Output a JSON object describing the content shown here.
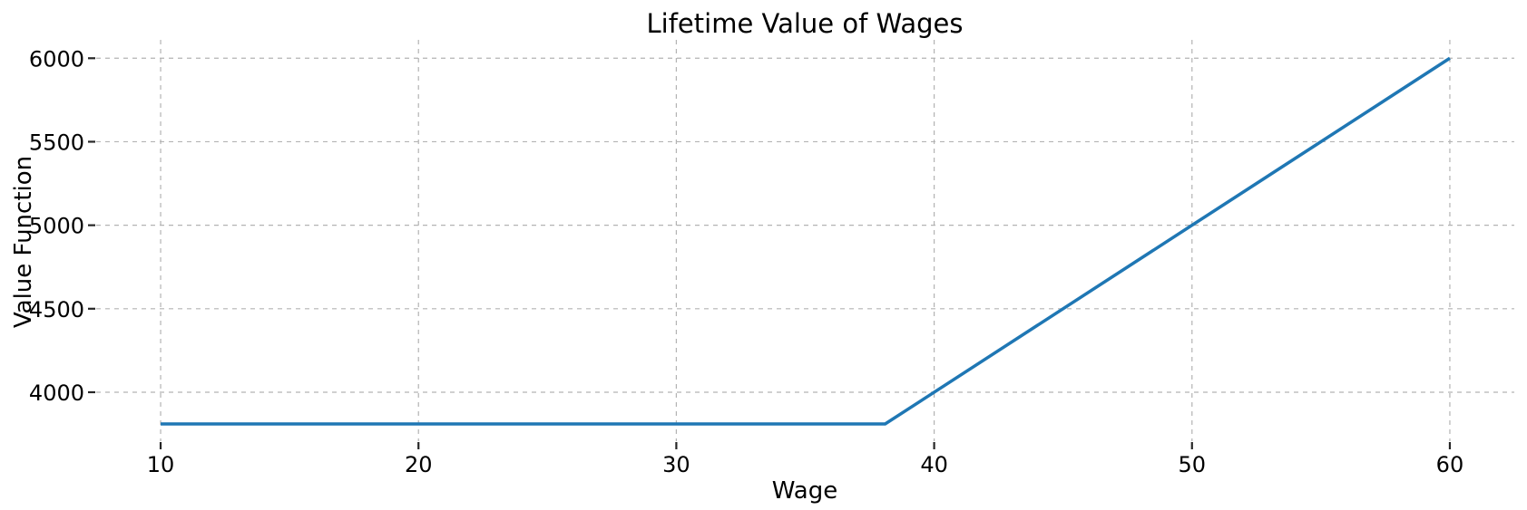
{
  "page": {
    "background": "#ffffff"
  },
  "chart_data": {
    "type": "line",
    "title": "Lifetime Value of Wages",
    "xlabel": "Wage",
    "ylabel": "Value Function",
    "x_ticks": [
      10,
      20,
      30,
      40,
      50,
      60
    ],
    "y_ticks": [
      4000,
      4500,
      5000,
      5500,
      6000
    ],
    "xlim": [
      7.5,
      62.5
    ],
    "ylim": [
      3707,
      6110
    ],
    "grid": {
      "visible": true,
      "style": "dashed",
      "color": "#b3b3b3"
    },
    "legend": "none",
    "colors": {
      "line": "#1f77b4",
      "tick": "#262626",
      "text": "#000000",
      "background": "#ffffff"
    },
    "series": [
      {
        "name": "Value Function",
        "color": "#1f77b4",
        "x": [
          10,
          38.1,
          60
        ],
        "y": [
          3810,
          3810,
          6000
        ],
        "note": "Piecewise linear: constant at ~3810 from wage 10 to reservation wage ~38, then rises with slope ~100 to 6000 at wage 60"
      }
    ]
  }
}
